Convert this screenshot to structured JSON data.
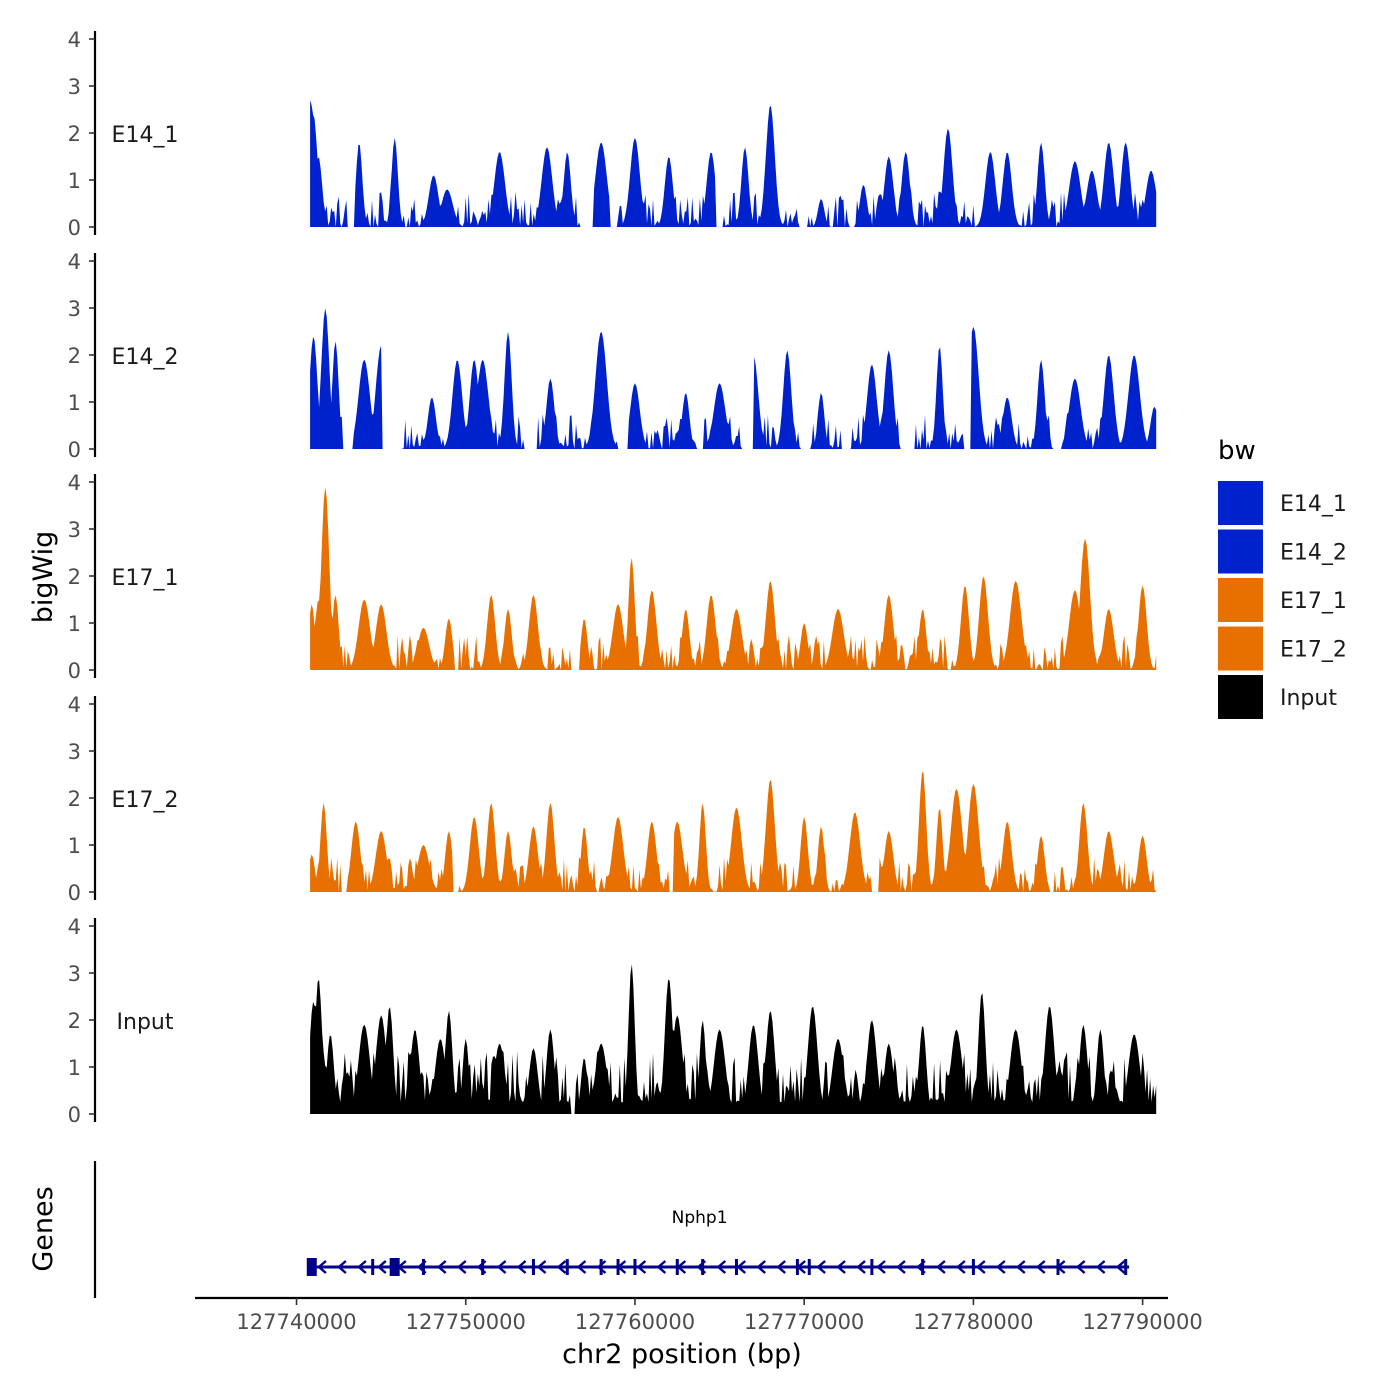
{
  "chart_data": {
    "type": "area",
    "title": "",
    "ylabel": "bigWig",
    "xlabel": "chr2 position (bp)",
    "xlim": [
      127734000,
      127791500
    ],
    "ylim": [
      0,
      4
    ],
    "y_ticks": [
      0,
      1,
      2,
      3,
      4
    ],
    "x_ticks": [
      127740000,
      127750000,
      127760000,
      127770000,
      127780000,
      127790000
    ],
    "x_tick_labels": [
      "127740000",
      "127750000",
      "127760000",
      "127770000",
      "127780000",
      "127790000"
    ],
    "data_range": [
      127740800,
      127790800
    ],
    "legend": {
      "title": "bw",
      "position": "right"
    },
    "series": [
      {
        "name": "E14_1",
        "color": "#0022cc",
        "peaks": [
          [
            127740800,
            2.7
          ],
          [
            127741000,
            2.4
          ],
          [
            127741300,
            1.5
          ],
          [
            127743700,
            1.8
          ],
          [
            127745800,
            1.9
          ],
          [
            127748100,
            1.1
          ],
          [
            127748900,
            0.8
          ],
          [
            127752000,
            1.6
          ],
          [
            127754800,
            1.7
          ],
          [
            127756000,
            1.6
          ],
          [
            127758000,
            1.8
          ],
          [
            127760000,
            1.9
          ],
          [
            127762000,
            1.5
          ],
          [
            127764500,
            1.6
          ],
          [
            127766500,
            1.7
          ],
          [
            127768000,
            2.6
          ],
          [
            127771000,
            0.6
          ],
          [
            127773500,
            0.9
          ],
          [
            127775000,
            1.5
          ],
          [
            127776000,
            1.6
          ],
          [
            127778500,
            2.1
          ],
          [
            127781000,
            1.6
          ],
          [
            127782000,
            1.6
          ],
          [
            127784000,
            1.8
          ],
          [
            127786000,
            1.4
          ],
          [
            127787000,
            1.2
          ],
          [
            127788000,
            1.8
          ],
          [
            127789000,
            1.8
          ],
          [
            127790500,
            1.2
          ]
        ],
        "gaps": [
          [
            127743000,
            127743400
          ],
          [
            127756700,
            127757500
          ],
          [
            127758500,
            127759000
          ],
          [
            127764800,
            127765200
          ],
          [
            127769800,
            127770200
          ],
          [
            127772700,
            127773000
          ]
        ]
      },
      {
        "name": "E14_2",
        "color": "#0022cc",
        "peaks": [
          [
            127741000,
            2.4
          ],
          [
            127741700,
            3.0
          ],
          [
            127742300,
            2.3
          ],
          [
            127744000,
            1.9
          ],
          [
            127745000,
            2.2
          ],
          [
            127748000,
            1.1
          ],
          [
            127749500,
            1.9
          ],
          [
            127750500,
            1.9
          ],
          [
            127751000,
            1.9
          ],
          [
            127752500,
            2.5
          ],
          [
            127755000,
            1.5
          ],
          [
            127758000,
            2.5
          ],
          [
            127760000,
            1.4
          ],
          [
            127763000,
            1.2
          ],
          [
            127765000,
            1.4
          ],
          [
            127767000,
            2.0
          ],
          [
            127769000,
            2.1
          ],
          [
            127771000,
            1.2
          ],
          [
            127774000,
            1.8
          ],
          [
            127775000,
            2.1
          ],
          [
            127778000,
            2.2
          ],
          [
            127780000,
            2.6
          ],
          [
            127782000,
            1.1
          ],
          [
            127784000,
            1.9
          ],
          [
            127786000,
            1.5
          ],
          [
            127788000,
            2.0
          ],
          [
            127789500,
            2.0
          ],
          [
            127790700,
            0.9
          ]
        ],
        "gaps": [
          [
            127742700,
            127743300
          ],
          [
            127745000,
            127746200
          ],
          [
            127753400,
            127754200
          ],
          [
            127759000,
            127759600
          ],
          [
            127763700,
            127764100
          ],
          [
            127766300,
            127767000
          ],
          [
            127769800,
            127770300
          ],
          [
            127772200,
            127772700
          ],
          [
            127775700,
            127776600
          ],
          [
            127779400,
            127779900
          ],
          [
            127784700,
            127785200
          ]
        ]
      },
      {
        "name": "E17_1",
        "color": "#e87000",
        "peaks": [
          [
            127740900,
            1.4
          ],
          [
            127741300,
            1.5
          ],
          [
            127741700,
            3.9
          ],
          [
            127742300,
            1.6
          ],
          [
            127744000,
            1.5
          ],
          [
            127745000,
            1.4
          ],
          [
            127747500,
            0.9
          ],
          [
            127749000,
            1.1
          ],
          [
            127751500,
            1.6
          ],
          [
            127752500,
            1.3
          ],
          [
            127754000,
            1.6
          ],
          [
            127757000,
            1.1
          ],
          [
            127759000,
            1.4
          ],
          [
            127759800,
            2.4
          ],
          [
            127761000,
            1.7
          ],
          [
            127763000,
            1.3
          ],
          [
            127764500,
            1.6
          ],
          [
            127766000,
            1.3
          ],
          [
            127768000,
            1.9
          ],
          [
            127770000,
            1.0
          ],
          [
            127772000,
            1.3
          ],
          [
            127775000,
            1.6
          ],
          [
            127777000,
            1.3
          ],
          [
            127779500,
            1.8
          ],
          [
            127780600,
            2.0
          ],
          [
            127782500,
            1.9
          ],
          [
            127786000,
            1.7
          ],
          [
            127786600,
            2.8
          ],
          [
            127788000,
            1.3
          ],
          [
            127790000,
            1.8
          ]
        ],
        "gaps": [
          [
            127749300,
            127749600
          ],
          [
            127756200,
            127756700
          ]
        ]
      },
      {
        "name": "E17_2",
        "color": "#e87000",
        "peaks": [
          [
            127740900,
            0.8
          ],
          [
            127741600,
            1.9
          ],
          [
            127743500,
            1.5
          ],
          [
            127745000,
            1.3
          ],
          [
            127747500,
            1.0
          ],
          [
            127749000,
            1.3
          ],
          [
            127750500,
            1.6
          ],
          [
            127751500,
            1.9
          ],
          [
            127752500,
            1.3
          ],
          [
            127754000,
            1.4
          ],
          [
            127755000,
            1.9
          ],
          [
            127757000,
            1.4
          ],
          [
            127759000,
            1.6
          ],
          [
            127761000,
            1.5
          ],
          [
            127762500,
            1.5
          ],
          [
            127764000,
            1.9
          ],
          [
            127766000,
            1.8
          ],
          [
            127768000,
            2.4
          ],
          [
            127770000,
            1.6
          ],
          [
            127771000,
            1.4
          ],
          [
            127773000,
            1.7
          ],
          [
            127775000,
            1.3
          ],
          [
            127777000,
            2.6
          ],
          [
            127778000,
            1.8
          ],
          [
            127779000,
            2.2
          ],
          [
            127780000,
            2.3
          ],
          [
            127782000,
            1.5
          ],
          [
            127784000,
            1.2
          ],
          [
            127786500,
            1.9
          ],
          [
            127788000,
            1.3
          ],
          [
            127790000,
            1.2
          ]
        ],
        "gaps": [
          [
            127742600,
            127743000
          ],
          [
            127749200,
            127749600
          ],
          [
            127762000,
            127762300
          ],
          [
            127774000,
            127774400
          ],
          [
            127784500,
            127784800
          ]
        ]
      },
      {
        "name": "Input",
        "color": "#000000",
        "peaks": [
          [
            127741000,
            2.4
          ],
          [
            127741300,
            2.9
          ],
          [
            127742000,
            1.7
          ],
          [
            127743000,
            0.9
          ],
          [
            127744000,
            1.9
          ],
          [
            127745000,
            2.1
          ],
          [
            127745500,
            2.3
          ],
          [
            127747000,
            1.8
          ],
          [
            127748500,
            1.6
          ],
          [
            127749000,
            2.2
          ],
          [
            127750000,
            1.6
          ],
          [
            127752000,
            1.5
          ],
          [
            127754000,
            1.4
          ],
          [
            127755000,
            1.8
          ],
          [
            127757000,
            1.2
          ],
          [
            127758000,
            1.5
          ],
          [
            127759800,
            3.2
          ],
          [
            127762000,
            2.9
          ],
          [
            127762500,
            2.1
          ],
          [
            127764000,
            2.0
          ],
          [
            127765000,
            1.8
          ],
          [
            127767000,
            1.9
          ],
          [
            127768000,
            2.2
          ],
          [
            127770500,
            2.3
          ],
          [
            127772000,
            1.6
          ],
          [
            127774000,
            2.0
          ],
          [
            127775000,
            1.5
          ],
          [
            127777000,
            1.9
          ],
          [
            127779000,
            1.8
          ],
          [
            127780500,
            2.6
          ],
          [
            127782500,
            1.8
          ],
          [
            127784500,
            2.3
          ],
          [
            127786500,
            1.9
          ],
          [
            127787500,
            1.8
          ],
          [
            127789500,
            1.7
          ]
        ],
        "gaps": [
          [
            127756200,
            127756500
          ]
        ]
      }
    ],
    "genes": [
      {
        "name": "Nphp1",
        "start": 127740800,
        "end": 127789200,
        "strand": "-",
        "color": "#00008b",
        "exons": [
          127740900,
          127744500,
          127745800,
          127747500,
          127751000,
          127754000,
          127756000,
          127758000,
          127759000,
          127760000,
          127762500,
          127764000,
          127766000,
          127769600,
          127770300,
          127774000,
          127777000,
          127780000,
          127785000,
          127789000
        ]
      }
    ]
  }
}
